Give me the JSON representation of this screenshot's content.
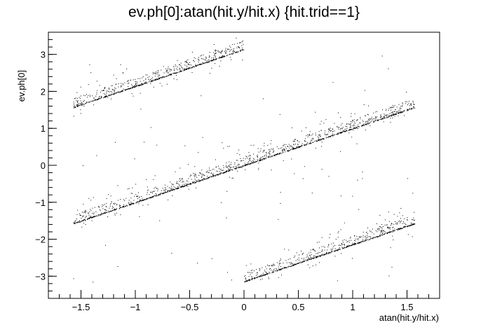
{
  "chart_data": {
    "type": "scatter",
    "title": "ev.ph[0]:atan(hit.y/hit.x) {hit.trid==1}",
    "xlabel": "atan(hit.y/hit.x)",
    "ylabel": "ev.ph[0]",
    "xlim": [
      -1.8,
      1.8
    ],
    "ylim": [
      -3.6,
      3.6
    ],
    "x_major_ticks": [
      -1.5,
      -1,
      -0.5,
      0,
      0.5,
      1,
      1.5
    ],
    "x_tick_labels": [
      "−1.5",
      "−1",
      "−0.5",
      "0",
      "0.5",
      "1",
      "1.5"
    ],
    "y_major_ticks": [
      -3,
      -2,
      -1,
      0,
      1,
      2,
      3
    ],
    "y_tick_labels": [
      "−3",
      "−2",
      "−1",
      "0",
      "1",
      "2",
      "3"
    ],
    "x_minor_step": 0.1,
    "y_minor_step": 0.2,
    "grid": false,
    "marker_color": "#000000",
    "series": [
      {
        "line": "y = x",
        "x_range": [
          -1.5708,
          1.5708
        ]
      },
      {
        "line": "y = x + pi",
        "x_range": [
          -1.5708,
          0.0
        ]
      },
      {
        "line": "y = x - pi",
        "x_range": [
          0.0,
          1.5708
        ]
      }
    ]
  }
}
